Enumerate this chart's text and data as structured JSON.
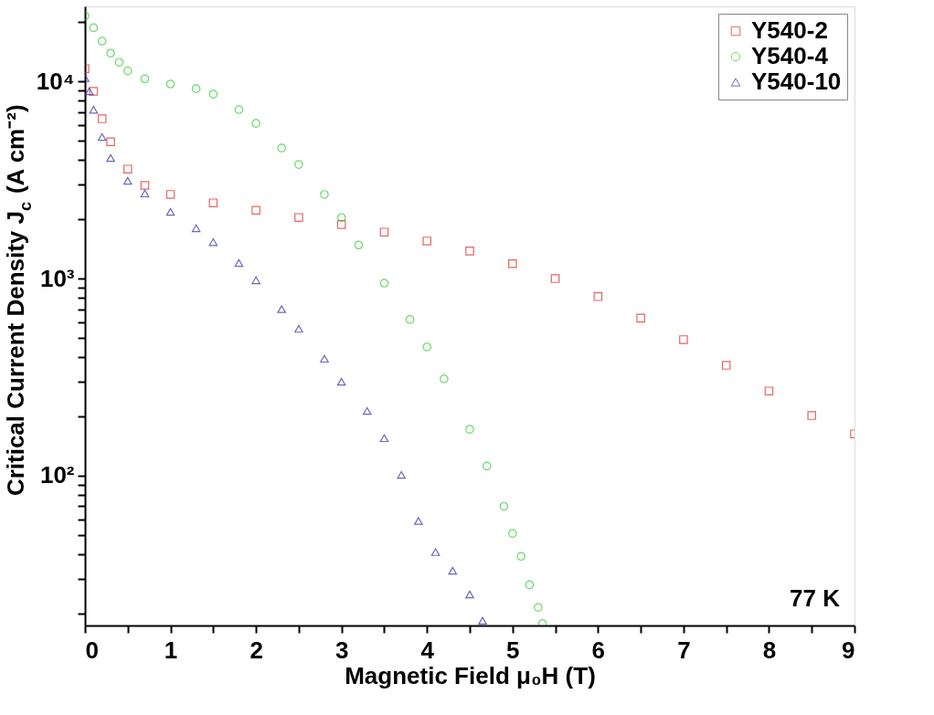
{
  "chart_data": {
    "type": "scatter",
    "xlabel": "Magnetic Field μ₀H (T)",
    "ylabel": "Critical Current Density J$_{c}$ (A cm⁻²)",
    "log": "y",
    "xlim": [
      0,
      9
    ],
    "xticks": [
      0,
      {
        "value": 0.5,
        "label": null
      },
      1,
      {
        "value": 1.5,
        "label": null
      },
      2,
      {
        "value": 2.5,
        "label": null
      },
      3,
      {
        "value": 3.5,
        "label": null
      },
      4,
      {
        "value": 4.5,
        "label": null
      },
      5,
      {
        "value": 5.5,
        "label": null
      },
      6,
      {
        "value": 6.5,
        "label": null
      },
      7,
      {
        "value": 7.5,
        "label": null
      },
      8,
      {
        "value": 8.5,
        "label": null
      },
      9
    ],
    "ylim": [
      17.4,
      24000
    ],
    "yticks": [
      {
        "value": 20,
        "label": null
      },
      {
        "value": 30,
        "label": null
      },
      {
        "value": 40,
        "label": null
      },
      {
        "value": 50,
        "label": null
      },
      {
        "value": 60,
        "label": null
      },
      {
        "value": 70,
        "label": null
      },
      {
        "value": 80,
        "label": null
      },
      {
        "value": 90,
        "label": null
      },
      {
        "value": 100,
        "label": "10²"
      },
      {
        "value": 200,
        "label": null
      },
      {
        "value": 300,
        "label": null
      },
      {
        "value": 400,
        "label": null
      },
      {
        "value": 500,
        "label": null
      },
      {
        "value": 600,
        "label": null
      },
      {
        "value": 700,
        "label": null
      },
      {
        "value": 800,
        "label": null
      },
      {
        "value": 900,
        "label": null
      },
      {
        "value": 1000,
        "label": "10³"
      },
      {
        "value": 2000,
        "label": null
      },
      {
        "value": 3000,
        "label": null
      },
      {
        "value": 4000,
        "label": null
      },
      {
        "value": 5000,
        "label": null
      },
      {
        "value": 6000,
        "label": null
      },
      {
        "value": 7000,
        "label": null
      },
      {
        "value": 8000,
        "label": null
      },
      {
        "value": 9000,
        "label": null
      },
      {
        "value": 10000,
        "label": "10⁴"
      },
      {
        "value": 20000,
        "label": null
      }
    ],
    "grid": false,
    "legend": "top right",
    "annotations": [
      "77 K"
    ],
    "series": [
      {
        "name": "Y540-2",
        "color": "#dd2222",
        "marker": "square",
        "x": [
          0,
          0.1,
          0.2,
          0.3,
          0.5,
          0.7,
          1.0,
          1.5,
          2.0,
          2.5,
          3.0,
          3.5,
          4.0,
          4.5,
          5.0,
          5.5,
          6.0,
          6.5,
          7.0,
          7.5,
          8.0,
          8.5,
          9.0
        ],
        "values": [
          11600,
          8900,
          6460,
          4940,
          3590,
          2970,
          2670,
          2420,
          2220,
          2040,
          1880,
          1720,
          1550,
          1380,
          1190,
          1000,
          810,
          630,
          490,
          363,
          269,
          202,
          163
        ]
      },
      {
        "name": "Y540-4",
        "color": "#22cc22",
        "marker": "circle",
        "x": [
          0,
          0.1,
          0.2,
          0.3,
          0.4,
          0.5,
          0.7,
          1.0,
          1.3,
          1.5,
          1.8,
          2.0,
          2.3,
          2.5,
          2.8,
          3.0,
          3.2,
          3.5,
          3.8,
          4.0,
          4.2,
          4.5,
          4.7,
          4.9,
          5.0,
          5.1,
          5.2,
          5.3,
          5.35
        ],
        "values": [
          21500,
          18700,
          16000,
          13900,
          12500,
          11300,
          10300,
          9690,
          9180,
          8610,
          7190,
          6120,
          4590,
          3790,
          2670,
          2040,
          1480,
          948,
          620,
          450,
          310,
          172,
          112,
          70,
          51,
          39,
          28,
          21.5,
          17.8
        ]
      },
      {
        "name": "Y540-10",
        "color": "#2a2aa0",
        "marker": "triangle",
        "x": [
          0,
          0.05,
          0.1,
          0.2,
          0.3,
          0.5,
          0.7,
          1.0,
          1.3,
          1.5,
          1.8,
          2.0,
          2.3,
          2.5,
          2.8,
          3.0,
          3.3,
          3.5,
          3.7,
          3.9,
          4.1,
          4.3,
          4.5,
          4.65
        ],
        "values": [
          10400,
          8900,
          7180,
          5220,
          4090,
          3130,
          2700,
          2180,
          1800,
          1530,
          1200,
          980,
          700,
          556,
          392,
          300,
          213,
          155,
          101,
          59,
          41,
          33,
          25,
          18.4
        ]
      }
    ]
  }
}
